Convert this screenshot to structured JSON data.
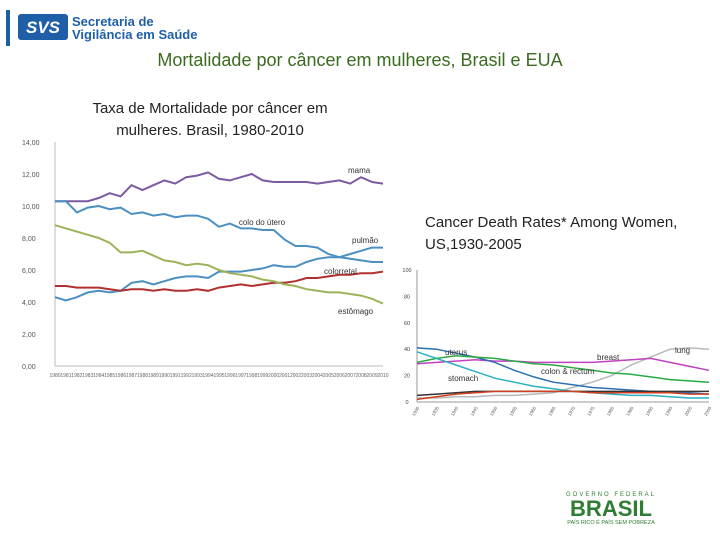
{
  "header": {
    "logo_mark": "SVS",
    "logo_line1": "Secretaria de",
    "logo_line2": "Vigilância em Saúde"
  },
  "slide_title": "Mortalidade por câncer em mulheres, Brasil e EUA",
  "colors": {
    "title": "#3b6b1f",
    "brand": "#1f5fa8"
  },
  "footer": {
    "gov_text": "GOVERNO FEDERAL",
    "brasil": "BRASIL",
    "motto": "PAÍS RICO É PAÍS SEM POBREZA"
  },
  "chart_data": [
    {
      "type": "line",
      "title": "Taxa de Mortalidade por câncer em mulheres. Brasil, 1980-2010",
      "ylim": [
        0,
        14
      ],
      "y_ticks": [
        "0,00",
        "2,00",
        "4,00",
        "6,00",
        "8,00",
        "10,00",
        "12,00",
        "14,00"
      ],
      "x": [
        1980,
        1981,
        1982,
        1983,
        1984,
        1985,
        1986,
        1987,
        1988,
        1989,
        1990,
        1991,
        1992,
        1993,
        1994,
        1995,
        1996,
        1997,
        1998,
        1999,
        2000,
        2001,
        2002,
        2003,
        2004,
        2005,
        2006,
        2007,
        2008,
        2009,
        2010
      ],
      "grid": false,
      "series": [
        {
          "name": "mama",
          "color": "#7a5aa0",
          "values": [
            10.3,
            10.3,
            10.3,
            10.3,
            10.5,
            10.8,
            10.6,
            11.3,
            11.0,
            11.3,
            11.6,
            11.4,
            11.8,
            11.9,
            12.1,
            11.7,
            11.6,
            11.8,
            12.0,
            11.6,
            11.5,
            11.5,
            11.5,
            11.5,
            11.4,
            11.5,
            11.6,
            11.4,
            11.8,
            11.5,
            11.4
          ]
        },
        {
          "name": "colo do útero",
          "color": "#4a90c0",
          "values": [
            10.3,
            10.3,
            9.6,
            9.9,
            10.0,
            9.8,
            9.9,
            9.5,
            9.6,
            9.4,
            9.5,
            9.3,
            9.4,
            9.4,
            9.2,
            8.7,
            8.9,
            8.6,
            8.6,
            8.5,
            8.5,
            7.9,
            7.5,
            7.5,
            7.4,
            7.0,
            6.8,
            6.7,
            6.6,
            6.5,
            6.5
          ]
        },
        {
          "name": "pulmão",
          "color": "#4a90c0",
          "values": [
            4.3,
            4.1,
            4.3,
            4.6,
            4.7,
            4.6,
            4.7,
            5.2,
            5.3,
            5.1,
            5.3,
            5.5,
            5.6,
            5.6,
            5.5,
            5.9,
            5.9,
            5.9,
            6.0,
            6.1,
            6.3,
            6.2,
            6.2,
            6.5,
            6.7,
            6.8,
            6.8,
            7.0,
            7.2,
            7.4,
            7.4
          ]
        },
        {
          "name": "colorretal",
          "color": "#b03030",
          "values": [
            5.0,
            5.0,
            4.9,
            4.9,
            4.9,
            4.8,
            4.7,
            4.8,
            4.8,
            4.7,
            4.8,
            4.7,
            4.7,
            4.8,
            4.7,
            4.9,
            5.0,
            5.1,
            5.0,
            5.1,
            5.2,
            5.2,
            5.3,
            5.5,
            5.5,
            5.6,
            5.7,
            5.7,
            5.8,
            5.8,
            5.9
          ]
        },
        {
          "name": "estômago",
          "color": "#9cb35a",
          "values": [
            8.8,
            8.6,
            8.4,
            8.2,
            8.0,
            7.7,
            7.1,
            7.1,
            7.2,
            6.9,
            6.6,
            6.5,
            6.3,
            6.4,
            6.3,
            6.0,
            5.8,
            5.7,
            5.6,
            5.4,
            5.3,
            5.1,
            5.0,
            4.8,
            4.7,
            4.6,
            4.6,
            4.5,
            4.4,
            4.2,
            3.9
          ]
        }
      ]
    },
    {
      "type": "line",
      "title": "Cancer Death Rates* Among Women, US,1930-2005",
      "ylim": [
        0,
        100
      ],
      "y_ticks": [
        "0",
        "20",
        "40",
        "60",
        "80",
        "100"
      ],
      "x": [
        1930,
        1935,
        1940,
        1945,
        1950,
        1955,
        1960,
        1965,
        1970,
        1975,
        1980,
        1985,
        1990,
        1995,
        2000,
        2005
      ],
      "x_ticks": [
        "1930",
        "1935",
        "1940",
        "1945",
        "1950",
        "1955",
        "1960",
        "1965",
        "1970",
        "1975",
        "1980",
        "1985",
        "1990",
        "1995",
        "2000",
        "2005"
      ],
      "grid": false,
      "series": [
        {
          "name": "lung",
          "color": "#b8b8b8",
          "values": [
            3,
            3,
            4,
            4,
            5,
            5,
            6,
            7,
            11,
            15,
            20,
            28,
            34,
            40,
            41,
            40
          ]
        },
        {
          "name": "breast",
          "color": "#c040c0",
          "values": [
            29,
            30,
            31,
            32,
            31,
            31,
            30,
            30,
            30,
            30,
            31,
            32,
            33,
            30,
            27,
            24
          ]
        },
        {
          "name": "uterus",
          "color": "#2a6fb0",
          "values": [
            41,
            40,
            37,
            34,
            30,
            24,
            19,
            15,
            13,
            11,
            10,
            9,
            8,
            7,
            7,
            6
          ]
        },
        {
          "name": "colon & rectum",
          "color": "#2aaa44",
          "values": [
            30,
            33,
            35,
            34,
            33,
            31,
            29,
            28,
            26,
            24,
            22,
            21,
            19,
            17,
            16,
            15
          ]
        },
        {
          "name": "stomach",
          "color": "#2ab0c0",
          "values": [
            38,
            33,
            28,
            23,
            18,
            15,
            12,
            10,
            8,
            7,
            6,
            5,
            5,
            4,
            3,
            3
          ]
        },
        {
          "name": "",
          "color": "#333333",
          "values": [
            5,
            6,
            7,
            8,
            8,
            8,
            8,
            8,
            8,
            8,
            8,
            8,
            8,
            8,
            8,
            8
          ]
        },
        {
          "name": "",
          "color": "#d04020",
          "values": [
            2,
            4,
            6,
            7,
            8,
            8,
            8,
            8,
            8,
            7,
            7,
            7,
            7,
            7,
            6,
            6
          ]
        }
      ]
    }
  ]
}
